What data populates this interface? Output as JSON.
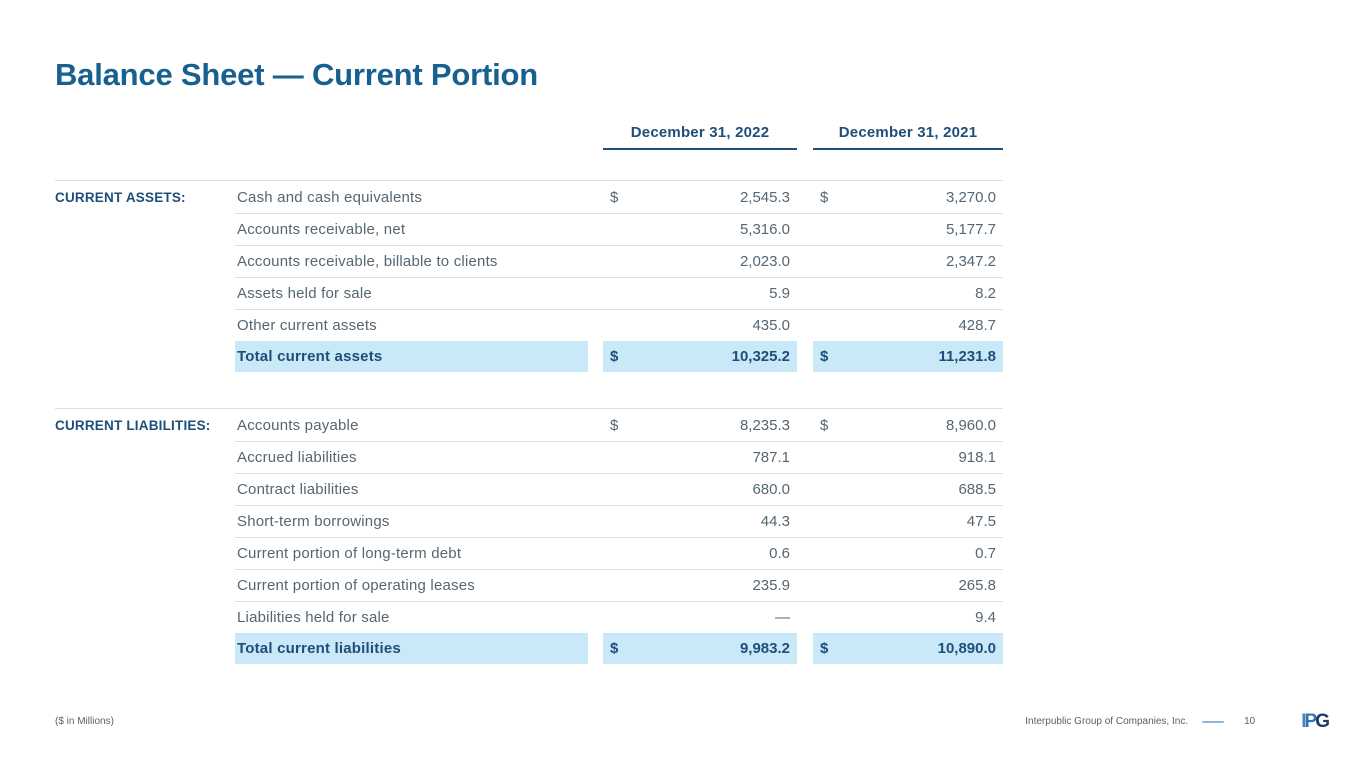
{
  "title": "Balance Sheet — Current Portion",
  "table": {
    "dollar_sign": "$",
    "col_headers": [
      "December 31, 2022",
      "December 31, 2021"
    ],
    "sections": [
      {
        "label": "CURRENT ASSETS:",
        "rows": [
          {
            "label": "Cash and cash equivalents",
            "dollar": true,
            "y2022": "2,545.3",
            "y2021": "3,270.0"
          },
          {
            "label": "Accounts receivable, net",
            "dollar": false,
            "y2022": "5,316.0",
            "y2021": "5,177.7"
          },
          {
            "label": "Accounts receivable, billable to clients",
            "dollar": false,
            "y2022": "2,023.0",
            "y2021": "2,347.2"
          },
          {
            "label": "Assets held for sale",
            "dollar": false,
            "y2022": "5.9",
            "y2021": "8.2"
          },
          {
            "label": "Other current assets",
            "dollar": false,
            "y2022": "435.0",
            "y2021": "428.7"
          }
        ],
        "total": {
          "label": "Total current assets",
          "dollar": true,
          "y2022": "10,325.2",
          "y2021": "11,231.8"
        }
      },
      {
        "label": "CURRENT LIABILITIES:",
        "rows": [
          {
            "label": "Accounts payable",
            "dollar": true,
            "y2022": "8,235.3",
            "y2021": "8,960.0"
          },
          {
            "label": "Accrued liabilities",
            "dollar": false,
            "y2022": "787.1",
            "y2021": "918.1"
          },
          {
            "label": "Contract liabilities",
            "dollar": false,
            "y2022": "680.0",
            "y2021": "688.5"
          },
          {
            "label": "Short-term borrowings",
            "dollar": false,
            "y2022": "44.3",
            "y2021": "47.5"
          },
          {
            "label": "Current portion of long-term debt",
            "dollar": false,
            "y2022": "0.6",
            "y2021": "0.7"
          },
          {
            "label": "Current portion of operating leases",
            "dollar": false,
            "y2022": "235.9",
            "y2021": "265.8"
          },
          {
            "label": "Liabilities held for sale",
            "dollar": false,
            "y2022": "—",
            "y2021": "9.4"
          }
        ],
        "total": {
          "label": "Total current liabilities",
          "dollar": true,
          "y2022": "9,983.2",
          "y2021": "10,890.0"
        }
      }
    ]
  },
  "footer": {
    "units_note": "($ in Millions)",
    "company": "Interpublic Group of Companies, Inc.",
    "page_number": "10",
    "logo_letters": [
      "I",
      "P",
      "G"
    ]
  },
  "colors": {
    "title": "#17608F",
    "navy": "#1F4E79",
    "body_text": "#556673",
    "total_highlight": "#C9E8F8",
    "divider": "#DDE0E3",
    "footer_text": "#55626E",
    "footer_dash": "#8FB6DB"
  }
}
